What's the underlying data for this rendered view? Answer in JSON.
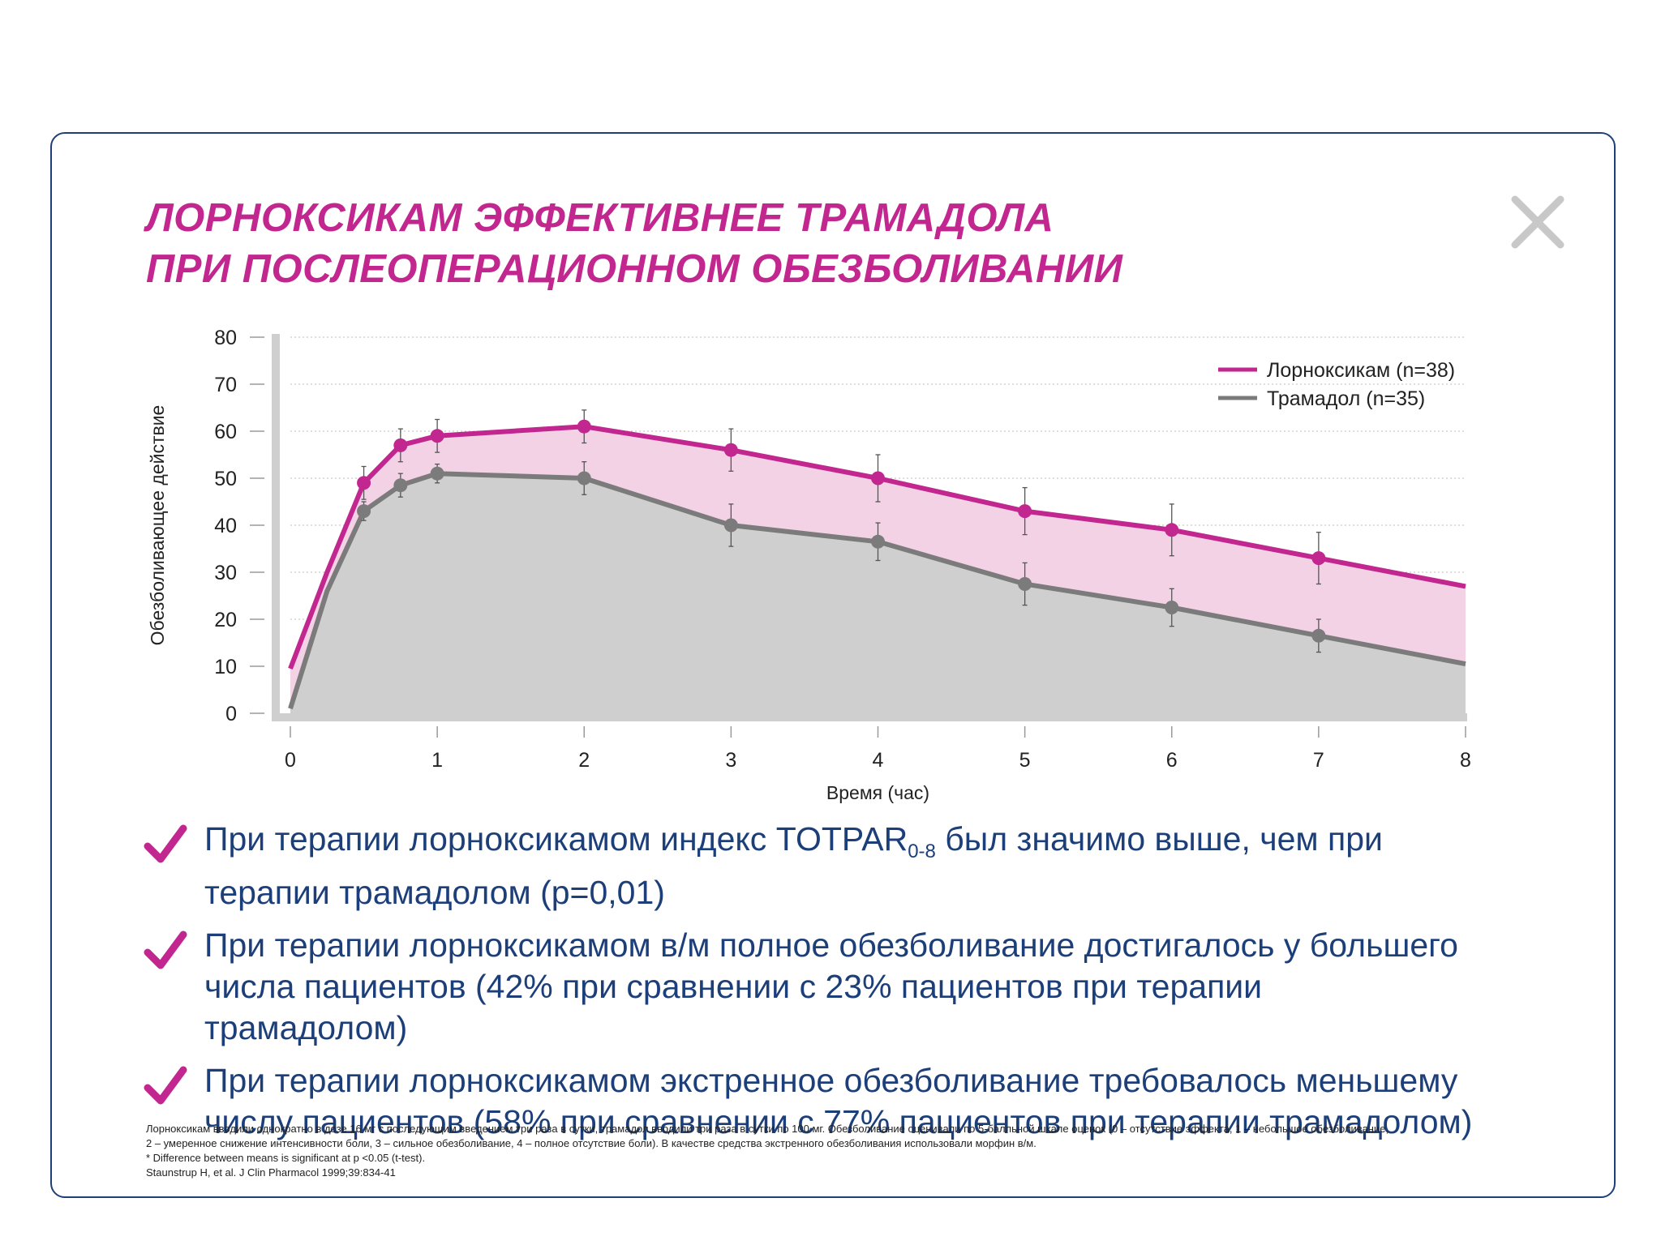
{
  "title": {
    "line1": "ЛОРНОКСИКАМ ЭФФЕКТИВНЕЕ ТРАМАДОЛА",
    "line2": "ПРИ ПОСЛЕОПЕРАЦИОННОМ ОБЕЗБОЛИВАНИИ"
  },
  "colors": {
    "accent": "#c2278f",
    "secondary": "#7b7b7b",
    "text": "#1c3f7a",
    "border": "#1f3f78",
    "fill_lornoxicam": "#f3d2e6",
    "fill_tramadol": "#cfcfcf"
  },
  "icons": {
    "close": "close-icon",
    "check": "check-icon"
  },
  "chart_data": {
    "type": "line",
    "xlabel": "Время (час)",
    "ylabel": "Обезболивающее действие",
    "xlim": [
      0,
      8
    ],
    "ylim": [
      0,
      80
    ],
    "x_ticks": [
      0,
      1,
      2,
      3,
      4,
      5,
      6,
      7,
      8
    ],
    "y_ticks": [
      0,
      10,
      20,
      30,
      40,
      50,
      60,
      70,
      80
    ],
    "grid": "horizontal dotted",
    "legend_position": "top-right",
    "series": [
      {
        "name": "Лорноксикам (n=38)",
        "color": "#c2278f",
        "line_x": [
          0,
          0.25,
          0.5,
          0.75,
          1,
          2,
          3,
          4,
          5,
          6,
          7,
          8
        ],
        "line_y": [
          9.5,
          30,
          49,
          57,
          59,
          61,
          56,
          50,
          43,
          39,
          33,
          27
        ],
        "marker_x": [
          0.5,
          0.75,
          1,
          2,
          3,
          4,
          5,
          6,
          7
        ],
        "marker_y": [
          49,
          57,
          59,
          61,
          56,
          50,
          43,
          39,
          33
        ],
        "error": [
          3.5,
          3.5,
          3.5,
          3.5,
          4.5,
          5,
          5,
          5.5,
          5.5
        ]
      },
      {
        "name": "Трамадол (n=35)",
        "color": "#7b7b7b",
        "line_x": [
          0,
          0.25,
          0.5,
          0.75,
          1,
          2,
          3,
          4,
          5,
          6,
          7,
          8
        ],
        "line_y": [
          1,
          26,
          43,
          48.5,
          51,
          50,
          40,
          36.5,
          27.5,
          22.5,
          16.5,
          10.5
        ],
        "marker_x": [
          0.5,
          0.75,
          1,
          2,
          3,
          4,
          5,
          6,
          7
        ],
        "marker_y": [
          43,
          48.5,
          51,
          50,
          40,
          36.5,
          27.5,
          22.5,
          16.5
        ],
        "error": [
          2,
          2.5,
          2,
          3.5,
          4.5,
          4,
          4.5,
          4,
          3.5
        ]
      }
    ]
  },
  "bullets": [
    {
      "pre": "При терапии лорноксикамом индекс TOTPAR",
      "sub": "0-8",
      "post": " был значимо выше, чем при терапии трамадолом (p=0,01)"
    },
    {
      "pre": "При терапии лорноксикамом в/м полное обезболивание достигалось у большего числа пациентов (42% при сравнении с 23% пациентов при терапии трамадолом)",
      "sub": "",
      "post": ""
    },
    {
      "pre": "При терапии лорноксикамом экстренное обезболивание требовалось меньшему числу пациентов (58% при сравнении с 77% пациентов при терапии трамадолом)",
      "sub": "",
      "post": ""
    }
  ],
  "footnotes": [
    "Лорноксикам вводили однократно в дозе 16 мг с последующим введением три раза в сутки, трамадол вводили три раза в сутки по 100 мг. Обезболивание оценивали по 5-балльной шкале оценок (0 – отсутствие эффекта, 1 – небольшое обезболивание,",
    "2 – умеренное снижение интенсивности боли, 3 – сильное обезболивание, 4 – полное отсутствие боли). В качестве средства экстренного обезболивания использовали морфин в/м.",
    "* Difference between means is significant at p <0.05 (t-test).",
    "Staunstrup H, et al. J Clin Pharmacol 1999;39:834-41"
  ]
}
